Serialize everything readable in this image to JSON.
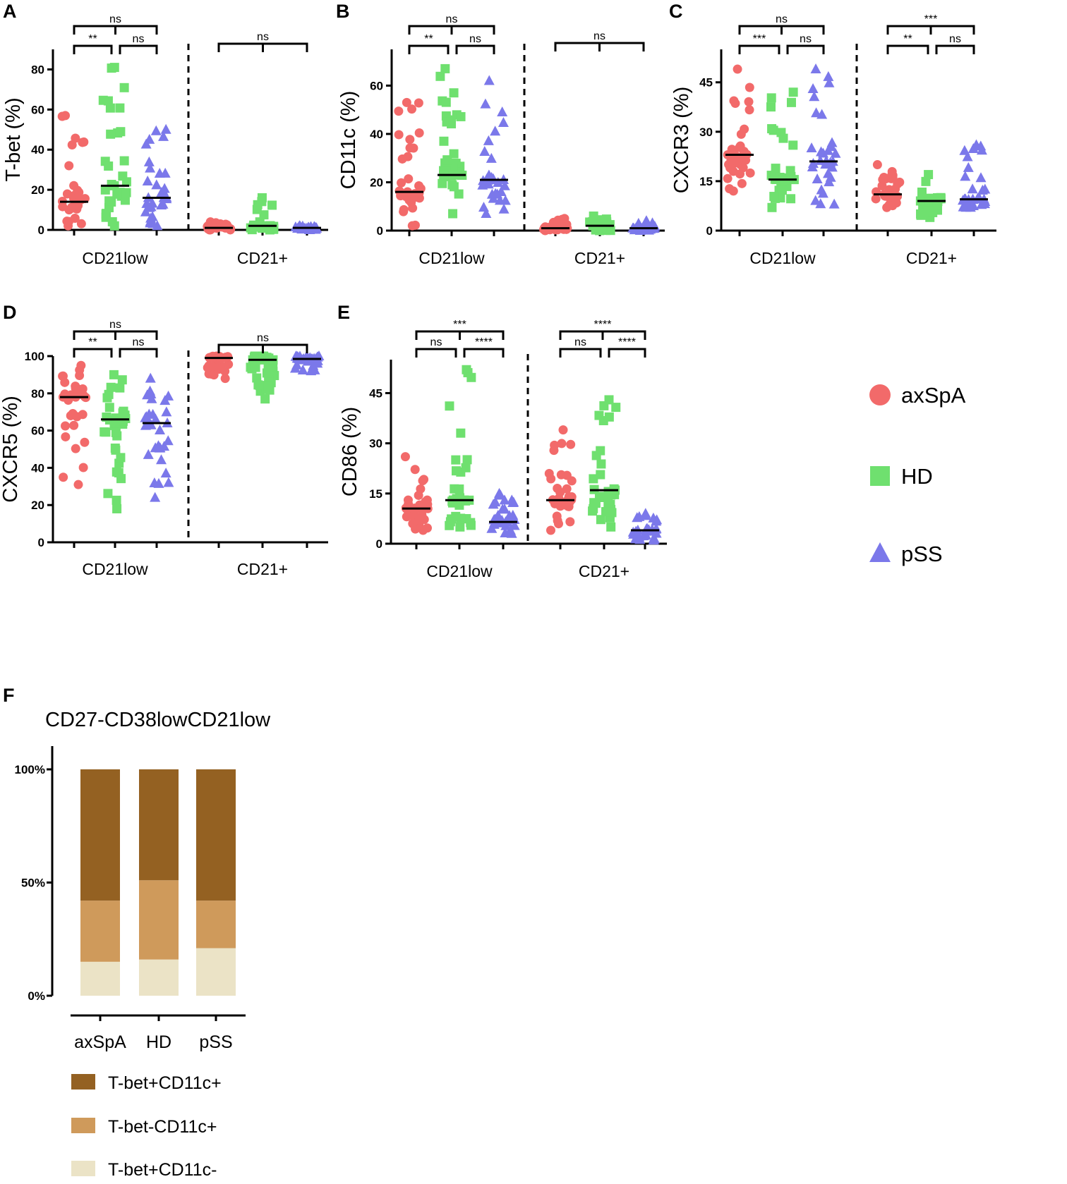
{
  "chart_data": [
    {
      "panel": "A",
      "type": "scatter",
      "ylabel": "T-bet (%)",
      "ylim": [
        0,
        90
      ],
      "yticks": [
        0,
        20,
        40,
        60,
        80
      ],
      "groups": [
        "CD21low",
        "CD21+"
      ],
      "series": [
        "axSpA",
        "HD",
        "pSS"
      ],
      "medians": [
        [
          14,
          22,
          16
        ],
        [
          1,
          2,
          1
        ]
      ],
      "ranges": [
        [
          [
            2,
            57
          ],
          [
            2,
            81
          ],
          [
            2,
            50
          ]
        ],
        [
          [
            0,
            4
          ],
          [
            0,
            16
          ],
          [
            0,
            2
          ]
        ]
      ],
      "comparisons": [
        {
          "group": 0,
          "pair": [
            0,
            1
          ],
          "label": "**"
        },
        {
          "group": 0,
          "pair": [
            1,
            2
          ],
          "label": "ns"
        },
        {
          "group": 0,
          "pair": [
            0,
            2
          ],
          "label": "ns"
        },
        {
          "group": 1,
          "pair": [
            0,
            2
          ],
          "label": "ns"
        }
      ]
    },
    {
      "panel": "B",
      "type": "scatter",
      "ylabel": "CD11c (%)",
      "ylim": [
        0,
        75
      ],
      "yticks": [
        0,
        20,
        40,
        60
      ],
      "groups": [
        "CD21low",
        "CD21+"
      ],
      "series": [
        "axSpA",
        "HD",
        "pSS"
      ],
      "medians": [
        [
          16,
          23,
          21
        ],
        [
          1,
          2,
          1
        ]
      ],
      "ranges": [
        [
          [
            2,
            53
          ],
          [
            7,
            67
          ],
          [
            7,
            62
          ]
        ],
        [
          [
            0,
            5
          ],
          [
            0,
            6
          ],
          [
            0,
            4
          ]
        ]
      ],
      "comparisons": [
        {
          "group": 0,
          "pair": [
            0,
            1
          ],
          "label": "**"
        },
        {
          "group": 0,
          "pair": [
            1,
            2
          ],
          "label": "ns"
        },
        {
          "group": 0,
          "pair": [
            0,
            2
          ],
          "label": "ns"
        },
        {
          "group": 1,
          "pair": [
            0,
            2
          ],
          "label": "ns"
        }
      ]
    },
    {
      "panel": "C",
      "type": "scatter",
      "ylabel": "CXCR3 (%)",
      "ylim": [
        0,
        55
      ],
      "yticks": [
        0,
        15,
        30,
        45
      ],
      "groups": [
        "CD21low",
        "CD21+"
      ],
      "series": [
        "axSpA",
        "HD",
        "pSS"
      ],
      "medians": [
        [
          23,
          15.5,
          21
        ],
        [
          11,
          9,
          9.5
        ]
      ],
      "ranges": [
        [
          [
            12,
            49
          ],
          [
            7,
            42
          ],
          [
            8,
            49
          ]
        ],
        [
          [
            7,
            20
          ],
          [
            4,
            17
          ],
          [
            7,
            26
          ]
        ]
      ],
      "comparisons": [
        {
          "group": 0,
          "pair": [
            0,
            1
          ],
          "label": "***"
        },
        {
          "group": 0,
          "pair": [
            1,
            2
          ],
          "label": "ns"
        },
        {
          "group": 0,
          "pair": [
            0,
            2
          ],
          "label": "ns"
        },
        {
          "group": 1,
          "pair": [
            0,
            1
          ],
          "label": "**"
        },
        {
          "group": 1,
          "pair": [
            1,
            2
          ],
          "label": "ns"
        },
        {
          "group": 1,
          "pair": [
            0,
            2
          ],
          "label": "***"
        }
      ]
    },
    {
      "panel": "D",
      "type": "scatter",
      "ylabel": "CXCR5 (%)",
      "ylim": [
        0,
        100
      ],
      "yticks": [
        0,
        20,
        40,
        60,
        80,
        100
      ],
      "groups": [
        "CD21low",
        "CD21+"
      ],
      "series": [
        "axSpA",
        "HD",
        "pSS"
      ],
      "medians": [
        [
          78,
          66,
          64
        ],
        [
          99,
          98,
          98.5
        ]
      ],
      "ranges": [
        [
          [
            31,
            95
          ],
          [
            18,
            90
          ],
          [
            24,
            88
          ]
        ],
        [
          [
            88,
            100
          ],
          [
            77,
            100
          ],
          [
            92,
            100
          ]
        ]
      ],
      "comparisons": [
        {
          "group": 0,
          "pair": [
            0,
            1
          ],
          "label": "**"
        },
        {
          "group": 0,
          "pair": [
            1,
            2
          ],
          "label": "ns"
        },
        {
          "group": 0,
          "pair": [
            0,
            2
          ],
          "label": "ns"
        },
        {
          "group": 1,
          "pair": [
            0,
            2
          ],
          "label": "ns"
        }
      ]
    },
    {
      "panel": "E",
      "type": "scatter",
      "ylabel": "CD86 (%)",
      "ylim": [
        0,
        55
      ],
      "yticks": [
        0,
        15,
        30,
        45
      ],
      "groups": [
        "CD21low",
        "CD21+"
      ],
      "series": [
        "axSpA",
        "HD",
        "pSS"
      ],
      "medians": [
        [
          10.5,
          13,
          6.5
        ],
        [
          13,
          16,
          4
        ]
      ],
      "ranges": [
        [
          [
            4,
            26
          ],
          [
            5,
            52
          ],
          [
            3,
            15
          ]
        ],
        [
          [
            4,
            34
          ],
          [
            5,
            43
          ],
          [
            1,
            9
          ]
        ]
      ],
      "comparisons": [
        {
          "group": 0,
          "pair": [
            0,
            1
          ],
          "label": "ns"
        },
        {
          "group": 0,
          "pair": [
            1,
            2
          ],
          "label": "****"
        },
        {
          "group": 0,
          "pair": [
            0,
            2
          ],
          "label": "***"
        },
        {
          "group": 1,
          "pair": [
            0,
            1
          ],
          "label": "ns"
        },
        {
          "group": 1,
          "pair": [
            1,
            2
          ],
          "label": "****"
        },
        {
          "group": 1,
          "pair": [
            0,
            2
          ],
          "label": "****"
        }
      ]
    },
    {
      "panel": "F",
      "type": "bar",
      "stacked": true,
      "title": "CD27-CD38lowCD21low",
      "categories": [
        "axSpA",
        "HD",
        "pSS"
      ],
      "yticks": [
        "0%",
        "50%",
        "100%"
      ],
      "ylim": [
        0,
        100
      ],
      "series": [
        {
          "name": "T-bet+CD11c-",
          "color": "#ebe3c6",
          "values": [
            15,
            16,
            21
          ]
        },
        {
          "name": "T-bet-CD11c+",
          "color": "#cf9a5b",
          "values": [
            27,
            35,
            21
          ]
        },
        {
          "name": "T-bet+CD11c+",
          "color": "#946122",
          "values": [
            58,
            49,
            58
          ]
        }
      ]
    }
  ],
  "legend": [
    {
      "label": "axSpA",
      "color": "#f26a6a",
      "shape": "circle"
    },
    {
      "label": "HD",
      "color": "#6fe06f",
      "shape": "square"
    },
    {
      "label": "pSS",
      "color": "#7b78ea",
      "shape": "triangle"
    }
  ]
}
